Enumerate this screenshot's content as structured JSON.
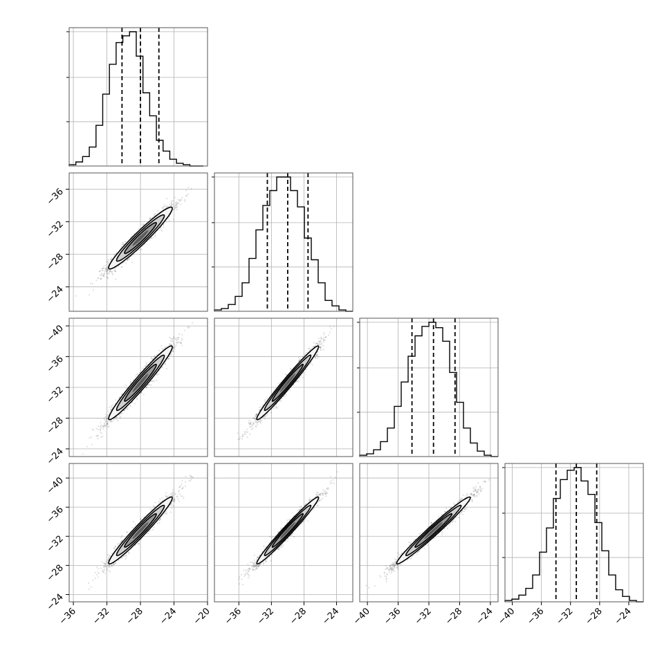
{
  "chart_data": {
    "type": "corner",
    "tick_labels": {
      "x_p0": [
        "−36",
        "−32",
        "−28",
        "−24",
        "−20"
      ],
      "x_p1": [
        "−36",
        "−32",
        "−28",
        "−24"
      ],
      "x_p2": [
        "−40",
        "−36",
        "−32",
        "−28",
        "−24"
      ],
      "x_p3": [
        "−40",
        "−36",
        "−32",
        "−28",
        "−24"
      ],
      "y_p1": [
        "−24",
        "−28",
        "−32",
        "−36"
      ],
      "y_p2": [
        "−24",
        "−28",
        "−32",
        "−36",
        "−40"
      ],
      "y_p3": [
        "−24",
        "−28",
        "−32",
        "−36",
        "−40"
      ]
    },
    "parameters": [
      {
        "axis_range": [
          -36.5,
          -20
        ],
        "ticks": [
          -36,
          -32,
          -28,
          -24,
          -20
        ],
        "quantiles": [
          -30.2,
          -28.0,
          -25.8
        ],
        "histogram": {
          "bin_edges": [
            -36.5,
            -35.7,
            -34.9,
            -34.1,
            -33.3,
            -32.5,
            -31.7,
            -30.9,
            -30.1,
            -29.3,
            -28.5,
            -27.7,
            -26.9,
            -26.1,
            -25.3,
            -24.5,
            -23.7,
            -22.9,
            -22.1,
            -21.3,
            -20.5
          ],
          "counts": [
            1,
            3,
            7,
            14,
            30,
            53,
            75,
            91,
            96,
            99,
            81,
            54,
            37,
            19,
            11,
            5,
            2,
            1,
            0,
            0
          ]
        }
      },
      {
        "axis_range": [
          -39,
          -22
        ],
        "ticks": [
          -36,
          -32,
          -28,
          -24
        ],
        "quantiles": [
          -32.5,
          -30.0,
          -27.5
        ],
        "histogram": {
          "bin_edges": [
            -39,
            -38.15,
            -37.3,
            -36.45,
            -35.6,
            -34.75,
            -33.9,
            -33.05,
            -32.2,
            -31.35,
            -30.5,
            -29.65,
            -28.8,
            -27.95,
            -27.1,
            -26.25,
            -25.4,
            -24.55,
            -23.7,
            -22.85,
            -22
          ],
          "counts": [
            1,
            2,
            5,
            11,
            21,
            39,
            60,
            78,
            89,
            99,
            99,
            89,
            77,
            54,
            38,
            21,
            8,
            4,
            1,
            0
          ]
        }
      },
      {
        "axis_range": [
          -41,
          -23
        ],
        "ticks": [
          -40,
          -36,
          -32,
          -28,
          -24
        ],
        "quantiles": [
          -34.2,
          -31.4,
          -28.6
        ],
        "histogram": {
          "bin_edges": [
            -41,
            -40.1,
            -39.2,
            -38.3,
            -37.4,
            -36.5,
            -35.6,
            -34.7,
            -33.8,
            -32.9,
            -32.0,
            -31.1,
            -30.2,
            -29.3,
            -28.4,
            -27.5,
            -26.6,
            -25.7,
            -24.8,
            -23.9,
            -23.0
          ],
          "counts": [
            1,
            2,
            5,
            11,
            21,
            37,
            55,
            74,
            89,
            96,
            99,
            95,
            85,
            62,
            40,
            21,
            10,
            4,
            1,
            0
          ]
        }
      },
      {
        "axis_range": [
          -41,
          -22
        ],
        "ticks": [
          -40,
          -36,
          -32,
          -28,
          -24
        ],
        "quantiles": [
          -34.0,
          -31.2,
          -28.4
        ],
        "histogram": {
          "bin_edges": [
            -41,
            -40.05,
            -39.1,
            -38.15,
            -37.2,
            -36.25,
            -35.3,
            -34.35,
            -33.4,
            -32.45,
            -31.5,
            -30.55,
            -29.6,
            -28.65,
            -27.7,
            -26.75,
            -25.8,
            -24.85,
            -23.9,
            -22.95,
            -22
          ],
          "counts": [
            1,
            2,
            5,
            10,
            20,
            37,
            55,
            77,
            91,
            98,
            100,
            90,
            80,
            59,
            38,
            20,
            9,
            4,
            1,
            0
          ]
        }
      }
    ],
    "pairs": [
      {
        "row": 1,
        "col": 0,
        "center": [
          -28.0,
          -30.0
        ],
        "sigma": [
          1.9,
          1.9
        ],
        "rho": 0.96
      },
      {
        "row": 2,
        "col": 0,
        "center": [
          -28.0,
          -31.4
        ],
        "sigma": [
          1.9,
          2.4
        ],
        "rho": 0.97
      },
      {
        "row": 2,
        "col": 1,
        "center": [
          -30.0,
          -31.4
        ],
        "sigma": [
          1.9,
          2.4
        ],
        "rho": 0.98
      },
      {
        "row": 3,
        "col": 0,
        "center": [
          -28.0,
          -31.2
        ],
        "sigma": [
          1.9,
          2.3
        ],
        "rho": 0.97
      },
      {
        "row": 3,
        "col": 1,
        "center": [
          -30.0,
          -31.2
        ],
        "sigma": [
          1.9,
          2.3
        ],
        "rho": 0.98
      },
      {
        "row": 3,
        "col": 2,
        "center": [
          -31.4,
          -31.2
        ],
        "sigma": [
          2.4,
          2.3
        ],
        "rho": 0.98
      }
    ],
    "contour_levels_sigma": [
      0.5,
      1.0,
      1.5,
      2.0
    ],
    "scatter_points_per_panel": 2000,
    "grid": true,
    "legend": "none"
  }
}
